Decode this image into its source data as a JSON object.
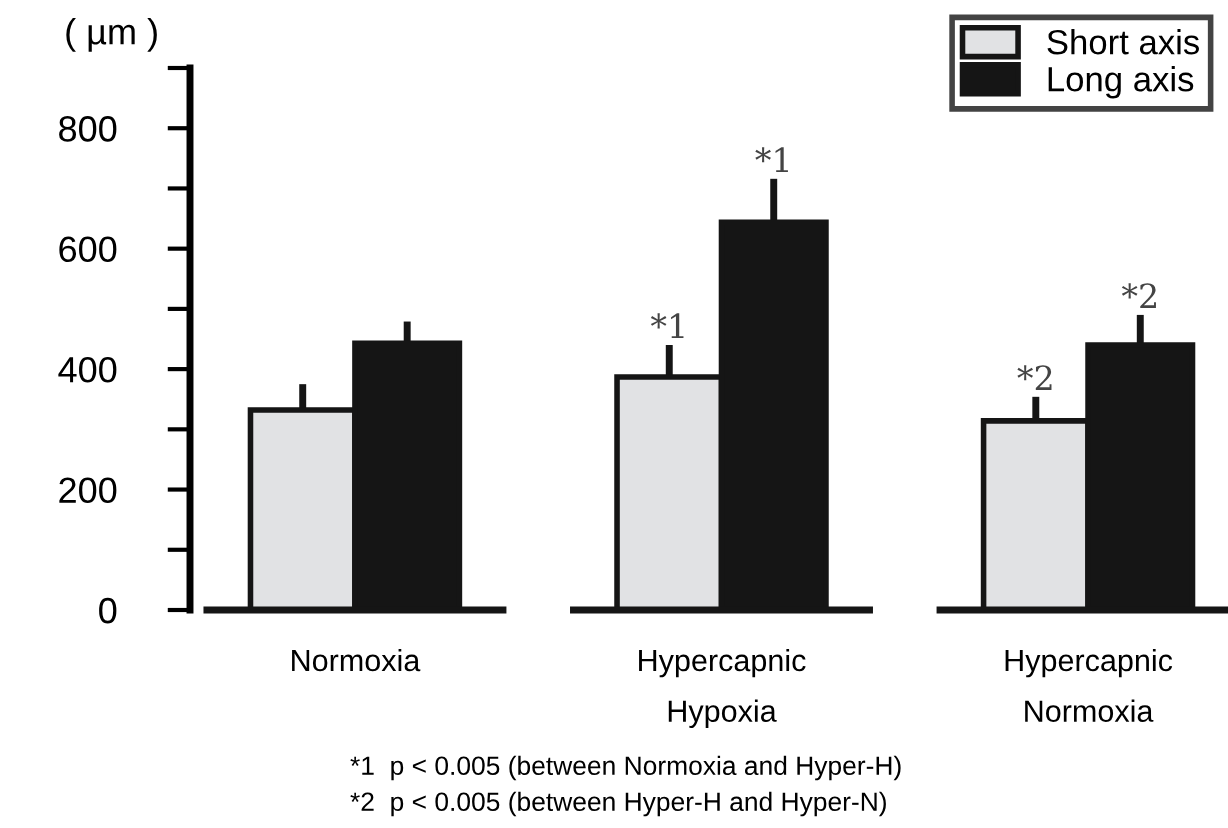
{
  "chart_data": {
    "type": "bar",
    "categories": [
      "Normoxia",
      "Hypercapnic\nHypoxia",
      "Hypercapnic\nNormoxia"
    ],
    "series": [
      {
        "name": "Short axis",
        "color": "#e1e2e4",
        "values": [
          332,
          387,
          314
        ],
        "errors": [
          [
            332,
            375
          ],
          [
            387,
            440
          ],
          [
            314,
            354
          ]
        ]
      },
      {
        "name": "Long axis",
        "color": "#151515",
        "values": [
          443,
          644,
          440
        ],
        "errors": [
          [
            443,
            479
          ],
          [
            644,
            716
          ],
          [
            440,
            490
          ]
        ]
      }
    ],
    "ylabel": "( µm )",
    "ylim": [
      0,
      900
    ],
    "yticks": [
      0,
      {
        "value": 100,
        "label": null
      },
      200,
      {
        "value": 300,
        "label": null
      },
      400,
      {
        "value": 500,
        "label": null
      },
      600,
      {
        "value": 700,
        "label": null
      },
      800,
      {
        "value": 900,
        "label": null
      }
    ],
    "annotations": [
      {
        "text": "*1",
        "x": "Hypercapnic\nHypoxia",
        "y": 387
      },
      {
        "text": "*1",
        "x": "Hypercapnic\nHypoxia",
        "y": 644
      },
      {
        "text": "*2",
        "x": "Hypercapnic\nNormoxia",
        "y": 314
      },
      {
        "text": "*2",
        "x": "Hypercapnic\nNormoxia",
        "y": 440
      },
      "*1  p < 0.005 (between Normoxia and Hyper-H)",
      "*2  p < 0.005 (between Hyper-H and Hyper-N)"
    ],
    "legend": "top right",
    "grid": false
  }
}
